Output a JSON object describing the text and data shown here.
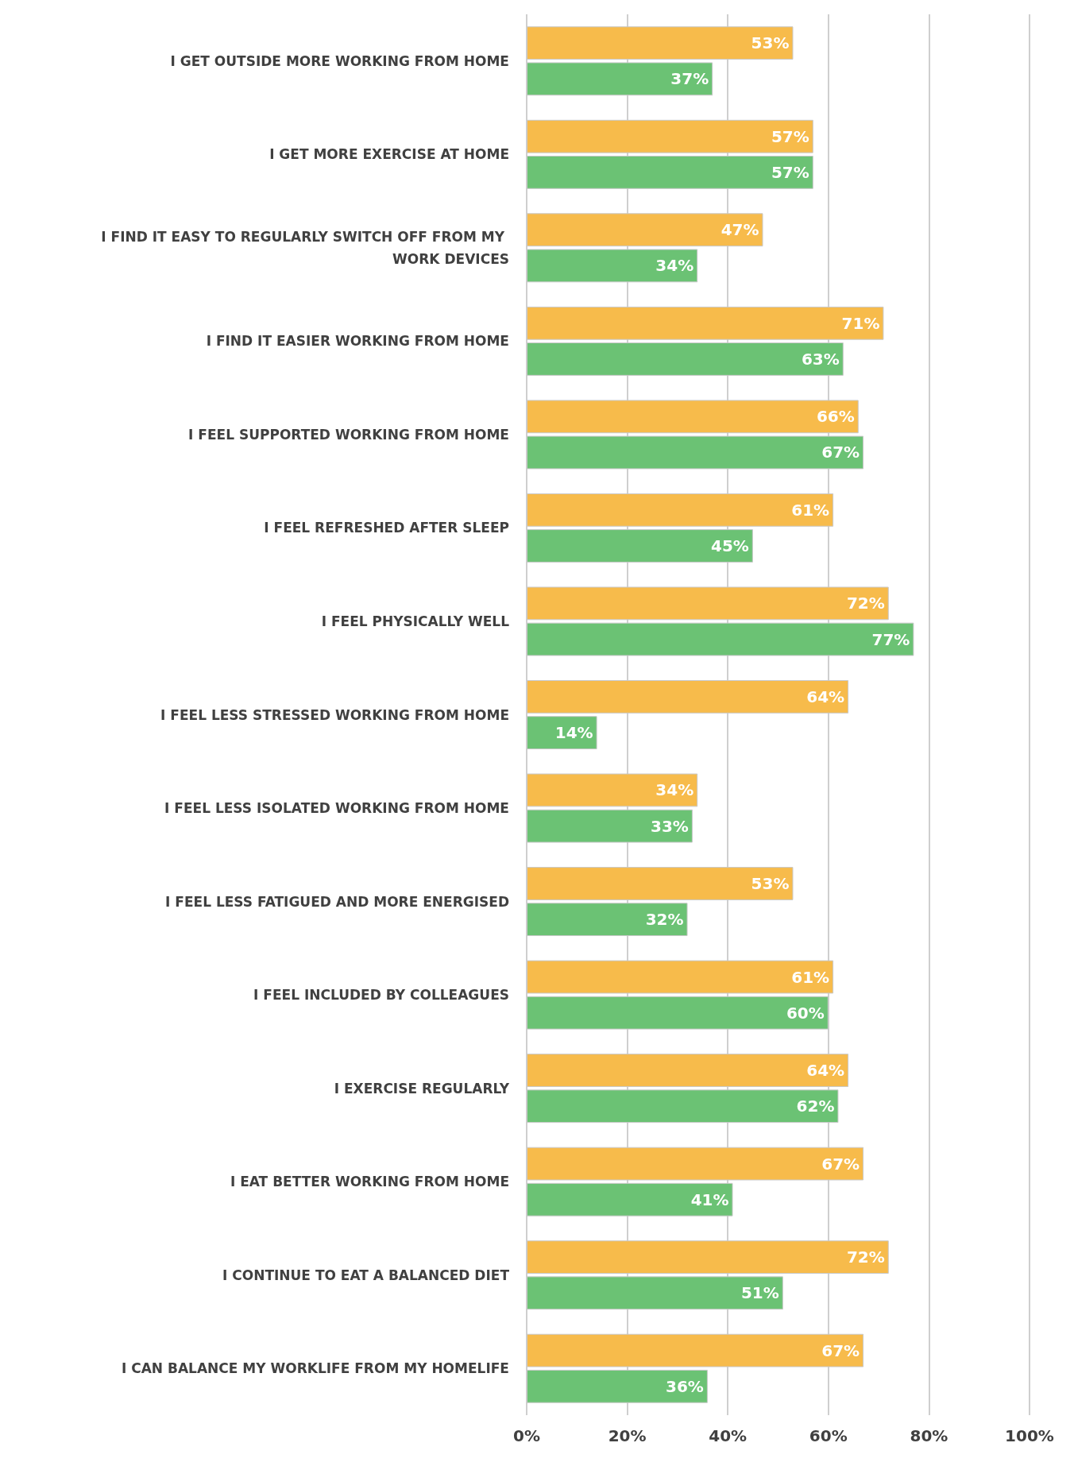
{
  "chart_data": {
    "type": "bar",
    "orientation": "horizontal",
    "categories": [
      "I GET OUTSIDE MORE WORKING FROM HOME",
      "I GET MORE EXERCISE AT HOME",
      "I FIND IT EASY TO REGULARLY SWITCH OFF FROM MY WORK DEVICES",
      "I FIND IT EASIER WORKING FROM HOME",
      "I FEEL SUPPORTED WORKING FROM HOME",
      "I FEEL REFRESHED AFTER SLEEP",
      "I FEEL PHYSICALLY WELL",
      "I FEEL LESS STRESSED WORKING FROM HOME",
      "I FEEL LESS ISOLATED WORKING FROM HOME",
      "I FEEL LESS FATIGUED AND MORE ENERGISED",
      "I FEEL INCLUDED BY COLLEAGUES",
      "I EXERCISE REGULARLY",
      "I EAT BETTER WORKING FROM HOME",
      "I CONTINUE TO EAT A BALANCED DIET",
      "I CAN BALANCE MY WORKLIFE FROM MY HOMELIFE"
    ],
    "series": [
      {
        "color": "#f7bb4b",
        "values": [
          53,
          57,
          47,
          71,
          66,
          61,
          72,
          64,
          34,
          53,
          61,
          64,
          67,
          72,
          67
        ],
        "value_labels": [
          "53%",
          "57%",
          "47%",
          "71%",
          "66%",
          "61%",
          "72%",
          "64%",
          "34%",
          "53%",
          "61%",
          "64%",
          "67%",
          "72%",
          "67%"
        ]
      },
      {
        "color": "#6bc274",
        "values": [
          37,
          57,
          34,
          63,
          67,
          45,
          77,
          14,
          33,
          32,
          60,
          62,
          41,
          51,
          36
        ],
        "value_labels": [
          "37%",
          "57%",
          "34%",
          "63%",
          "67%",
          "45%",
          "77%",
          "14%",
          "33%",
          "32%",
          "60%",
          "62%",
          "41%",
          "51%",
          "36%"
        ]
      }
    ],
    "xlim": [
      0,
      100
    ],
    "xticks": [
      {
        "value": 0,
        "label": "0%"
      },
      {
        "value": 20,
        "label": "20%"
      },
      {
        "value": 40,
        "label": "40%"
      },
      {
        "value": 60,
        "label": "60%"
      },
      {
        "value": 80,
        "label": "80%"
      },
      {
        "value": 100,
        "label": "100%"
      }
    ],
    "grid": "x"
  }
}
